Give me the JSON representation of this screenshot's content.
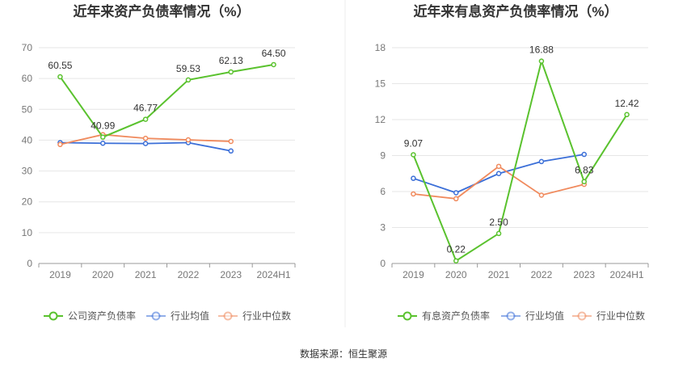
{
  "chart_data": [
    {
      "type": "line",
      "title": "近年来资产负债率情况（%）",
      "categories": [
        "2019",
        "2020",
        "2021",
        "2022",
        "2023",
        "2024H1"
      ],
      "ylim": [
        0,
        70
      ],
      "yticks": [
        0,
        10,
        20,
        30,
        40,
        50,
        60,
        70
      ],
      "grid": true,
      "legend_position": "bottom",
      "series": [
        {
          "name": "公司资产负债率",
          "color": "#5ac22e",
          "values": [
            60.55,
            40.99,
            46.77,
            59.53,
            62.13,
            64.5
          ],
          "labels": [
            "60.55",
            "40.99",
            "46.77",
            "59.53",
            "62.13",
            "64.50"
          ]
        },
        {
          "name": "行业均值",
          "color": "#3b6fd8",
          "values": [
            39.2,
            39.0,
            38.9,
            39.2,
            36.5,
            null
          ],
          "labels": []
        },
        {
          "name": "行业中位数",
          "color": "#f08a5d",
          "values": [
            38.6,
            41.8,
            40.6,
            40.1,
            39.6,
            null
          ],
          "labels": []
        }
      ]
    },
    {
      "type": "line",
      "title": "近年来有息资产负债率情况（%）",
      "categories": [
        "2019",
        "2020",
        "2021",
        "2022",
        "2023",
        "2024H1"
      ],
      "ylim": [
        0,
        18
      ],
      "yticks": [
        0,
        3,
        6,
        9,
        12,
        15,
        18
      ],
      "grid": true,
      "legend_position": "bottom",
      "series": [
        {
          "name": "有息资产负债率",
          "color": "#5ac22e",
          "values": [
            9.07,
            0.22,
            2.5,
            16.88,
            6.83,
            12.42
          ],
          "labels": [
            "9.07",
            "0.22",
            "2.50",
            "16.88",
            "6.83",
            "12.42"
          ]
        },
        {
          "name": "行业均值",
          "color": "#3b6fd8",
          "values": [
            7.1,
            5.9,
            7.5,
            8.5,
            9.1,
            null
          ],
          "labels": []
        },
        {
          "name": "行业中位数",
          "color": "#f08a5d",
          "values": [
            5.8,
            5.4,
            8.1,
            5.7,
            6.6,
            null
          ],
          "labels": []
        }
      ]
    }
  ],
  "footer": {
    "source": "数据来源：恒生聚源"
  }
}
